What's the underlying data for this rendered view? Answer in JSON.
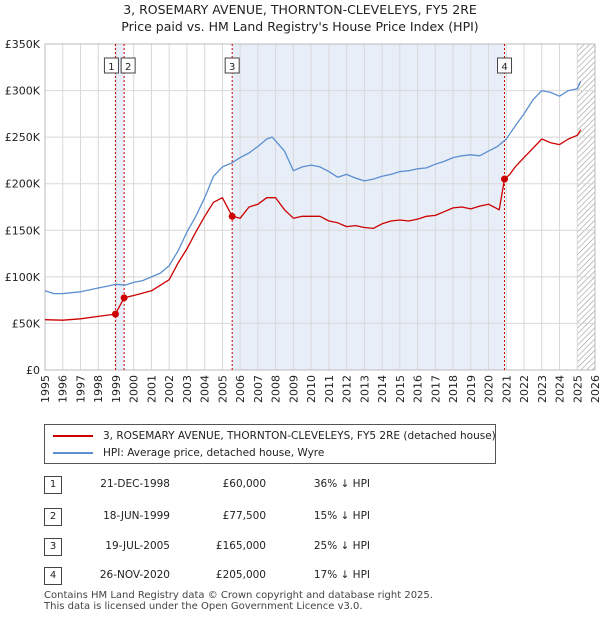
{
  "chart_data": {
    "type": "line",
    "title": "3, ROSEMARY AVENUE, THORNTON-CLEVELEYS, FY5 2RE",
    "subtitle": "Price paid vs. HM Land Registry's House Price Index (HPI)",
    "xlim": [
      1995,
      2026
    ],
    "ylim": [
      0,
      350000
    ],
    "x_ticks": [
      1995,
      1996,
      1997,
      1998,
      1999,
      2000,
      2001,
      2002,
      2003,
      2004,
      2005,
      2006,
      2007,
      2008,
      2009,
      2010,
      2011,
      2012,
      2013,
      2014,
      2015,
      2016,
      2017,
      2018,
      2019,
      2020,
      2021,
      2022,
      2023,
      2024,
      2025,
      2026
    ],
    "y_ticks": [
      0,
      50000,
      100000,
      150000,
      200000,
      250000,
      300000,
      350000
    ],
    "y_tick_labels": [
      "£0",
      "£50K",
      "£100K",
      "£150K",
      "£200K",
      "£250K",
      "£300K",
      "£350K"
    ],
    "series": [
      {
        "name": "3, ROSEMARY AVENUE, THORNTON-CLEVELEYS, FY5 2RE (detached house)",
        "color": "#cc0000",
        "points": [
          [
            1995.0,
            54000
          ],
          [
            1996.0,
            53500
          ],
          [
            1997.0,
            55000
          ],
          [
            1998.0,
            57500
          ],
          [
            1998.97,
            60000
          ],
          [
            1999.46,
            77500
          ],
          [
            2000.0,
            80000
          ],
          [
            2001.0,
            85000
          ],
          [
            2002.0,
            97000
          ],
          [
            2002.5,
            115000
          ],
          [
            2003.0,
            130000
          ],
          [
            2003.5,
            148000
          ],
          [
            2004.0,
            165000
          ],
          [
            2004.5,
            180000
          ],
          [
            2005.0,
            185000
          ],
          [
            2005.55,
            165000
          ],
          [
            2006.0,
            163000
          ],
          [
            2006.5,
            175000
          ],
          [
            2007.0,
            178000
          ],
          [
            2007.5,
            185000
          ],
          [
            2008.0,
            185000
          ],
          [
            2008.5,
            172000
          ],
          [
            2009.0,
            163000
          ],
          [
            2009.5,
            165000
          ],
          [
            2010.0,
            165000
          ],
          [
            2010.5,
            165000
          ],
          [
            2011.0,
            160000
          ],
          [
            2011.5,
            158000
          ],
          [
            2012.0,
            154000
          ],
          [
            2012.5,
            155000
          ],
          [
            2013.0,
            153000
          ],
          [
            2013.5,
            152000
          ],
          [
            2014.0,
            157000
          ],
          [
            2014.5,
            160000
          ],
          [
            2015.0,
            161000
          ],
          [
            2015.5,
            160000
          ],
          [
            2016.0,
            162000
          ],
          [
            2016.5,
            165000
          ],
          [
            2017.0,
            166000
          ],
          [
            2017.5,
            170000
          ],
          [
            2018.0,
            174000
          ],
          [
            2018.5,
            175000
          ],
          [
            2019.0,
            173000
          ],
          [
            2019.5,
            176000
          ],
          [
            2020.0,
            178000
          ],
          [
            2020.6,
            172000
          ],
          [
            2020.9,
            205000
          ],
          [
            2021.2,
            210000
          ],
          [
            2021.5,
            218000
          ],
          [
            2022.0,
            228000
          ],
          [
            2022.5,
            238000
          ],
          [
            2023.0,
            248000
          ],
          [
            2023.5,
            244000
          ],
          [
            2024.0,
            242000
          ],
          [
            2024.5,
            248000
          ],
          [
            2025.0,
            252000
          ],
          [
            2025.2,
            258000
          ]
        ]
      },
      {
        "name": "HPI: Average price, detached house, Wyre",
        "color": "#5b8fd0",
        "points": [
          [
            1995.0,
            85000
          ],
          [
            1995.5,
            82000
          ],
          [
            1996.0,
            82000
          ],
          [
            1996.5,
            83000
          ],
          [
            1997.0,
            84000
          ],
          [
            1997.5,
            86000
          ],
          [
            1998.0,
            88000
          ],
          [
            1998.5,
            90000
          ],
          [
            1999.0,
            92000
          ],
          [
            1999.5,
            91000
          ],
          [
            2000.0,
            94000
          ],
          [
            2000.5,
            96000
          ],
          [
            2001.0,
            100000
          ],
          [
            2001.5,
            104000
          ],
          [
            2002.0,
            112000
          ],
          [
            2002.5,
            128000
          ],
          [
            2003.0,
            148000
          ],
          [
            2003.5,
            165000
          ],
          [
            2004.0,
            185000
          ],
          [
            2004.5,
            208000
          ],
          [
            2005.0,
            218000
          ],
          [
            2005.5,
            222000
          ],
          [
            2006.0,
            228000
          ],
          [
            2006.5,
            233000
          ],
          [
            2007.0,
            240000
          ],
          [
            2007.5,
            248000
          ],
          [
            2007.8,
            250000
          ],
          [
            2008.0,
            246000
          ],
          [
            2008.5,
            235000
          ],
          [
            2009.0,
            214000
          ],
          [
            2009.5,
            218000
          ],
          [
            2010.0,
            220000
          ],
          [
            2010.5,
            218000
          ],
          [
            2011.0,
            213000
          ],
          [
            2011.5,
            207000
          ],
          [
            2012.0,
            210000
          ],
          [
            2012.5,
            206000
          ],
          [
            2013.0,
            203000
          ],
          [
            2013.5,
            205000
          ],
          [
            2014.0,
            208000
          ],
          [
            2014.5,
            210000
          ],
          [
            2015.0,
            213000
          ],
          [
            2015.5,
            214000
          ],
          [
            2016.0,
            216000
          ],
          [
            2016.5,
            217000
          ],
          [
            2017.0,
            221000
          ],
          [
            2017.5,
            224000
          ],
          [
            2018.0,
            228000
          ],
          [
            2018.5,
            230000
          ],
          [
            2019.0,
            231000
          ],
          [
            2019.5,
            230000
          ],
          [
            2020.0,
            235000
          ],
          [
            2020.5,
            240000
          ],
          [
            2021.0,
            248000
          ],
          [
            2021.5,
            262000
          ],
          [
            2022.0,
            275000
          ],
          [
            2022.5,
            290000
          ],
          [
            2023.0,
            300000
          ],
          [
            2023.5,
            298000
          ],
          [
            2024.0,
            294000
          ],
          [
            2024.5,
            300000
          ],
          [
            2025.0,
            302000
          ],
          [
            2025.2,
            310000
          ]
        ]
      }
    ],
    "transactions": [
      {
        "id": "1",
        "year": 1998.97,
        "price": 60000,
        "date": "21-DEC-1998",
        "price_label": "£60,000",
        "hpi_label": "36% ↓ HPI"
      },
      {
        "id": "2",
        "year": 1999.46,
        "price": 77500,
        "date": "18-JUN-1999",
        "price_label": "£77,500",
        "hpi_label": "15% ↓ HPI"
      },
      {
        "id": "3",
        "year": 2005.55,
        "price": 165000,
        "date": "19-JUL-2005",
        "price_label": "£165,000",
        "hpi_label": "25% ↓ HPI"
      },
      {
        "id": "4",
        "year": 2020.9,
        "price": 205000,
        "date": "26-NOV-2020",
        "price_label": "£205,000",
        "hpi_label": "17% ↓ HPI"
      }
    ],
    "shaded_ranges": [
      [
        1998.97,
        1999.46
      ],
      [
        2005.55,
        2020.9
      ]
    ],
    "hatched_from": 2025.0,
    "colors": {
      "grid": "#d8d8d8",
      "shade": "#e8eef8",
      "vline": "#cc0000"
    }
  },
  "legend": {
    "property_label": "3, ROSEMARY AVENUE, THORNTON-CLEVELEYS, FY5 2RE (detached house)",
    "hpi_label": "HPI: Average price, detached house, Wyre"
  },
  "footer": {
    "line1": "Contains HM Land Registry data © Crown copyright and database right 2025.",
    "line2": "This data is licensed under the Open Government Licence v3.0."
  }
}
